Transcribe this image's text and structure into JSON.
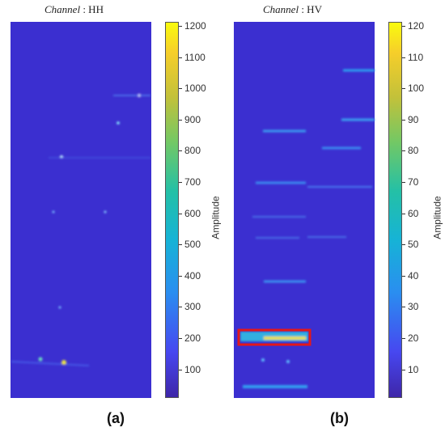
{
  "panel_a": {
    "title_italic": "Channel",
    "title_rest": " : HH",
    "colorbar_ticks": [
      "1200",
      "1100",
      "1000",
      "900",
      "800",
      "700",
      "600",
      "500",
      "400",
      "300",
      "200",
      "100"
    ],
    "colorbar_label": "Amplitude",
    "caption": "(a)"
  },
  "panel_b": {
    "title_italic": "Channel",
    "title_rest": " : HV",
    "colorbar_ticks": [
      "120",
      "110",
      "100",
      "90",
      "80",
      "70",
      "60",
      "50",
      "40",
      "30",
      "20",
      "10"
    ],
    "colorbar_label": "Amplitude",
    "caption": "(b)"
  },
  "colors": {
    "background": "#3b2fd0",
    "highlight_box": "#e3171b"
  }
}
